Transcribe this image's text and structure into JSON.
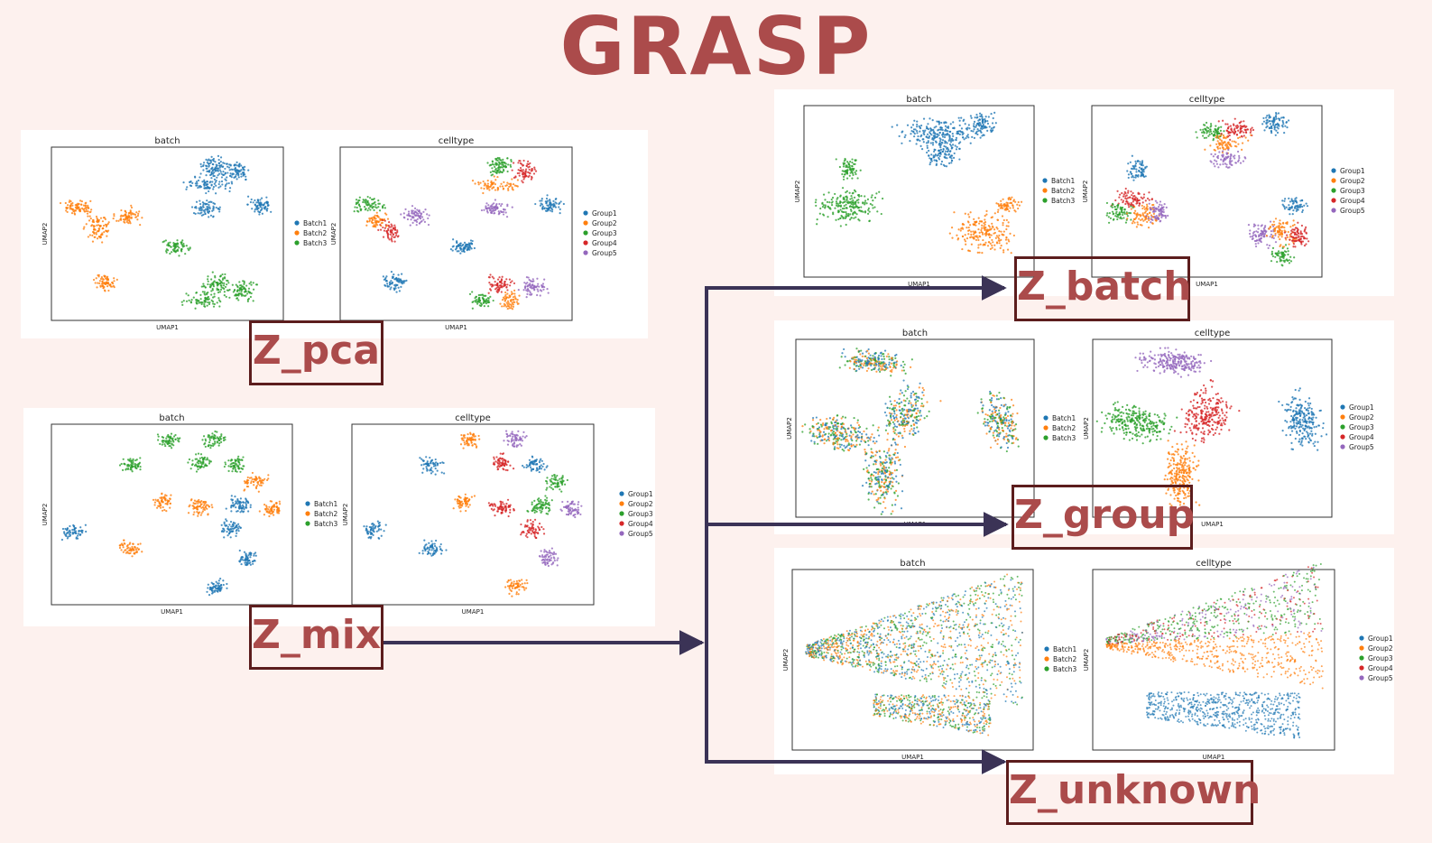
{
  "title": "GRASP",
  "colors": {
    "accent": "#ab4b4b",
    "box_border": "#5c1d1d",
    "arrow": "#3b3356",
    "background": "#fdf1ee",
    "blue": "#1f77b4",
    "orange": "#ff7f0e",
    "green": "#2ca02c",
    "red": "#d62728",
    "purple": "#9467bd"
  },
  "labels": {
    "pca": "Z_pca",
    "mix": "Z_mix",
    "batch": "Z_batch",
    "group": "Z_group",
    "unknown": "Z_unknown"
  },
  "plot_text": {
    "batch_title": "batch",
    "celltype_title": "celltype",
    "xlabel": "UMAP1",
    "ylabel": "UMAP2",
    "batch_legend": [
      "Batch1",
      "Batch2",
      "Batch3"
    ],
    "celltype_legend": [
      "Group1",
      "Group2",
      "Group3",
      "Group4",
      "Group5"
    ]
  }
}
